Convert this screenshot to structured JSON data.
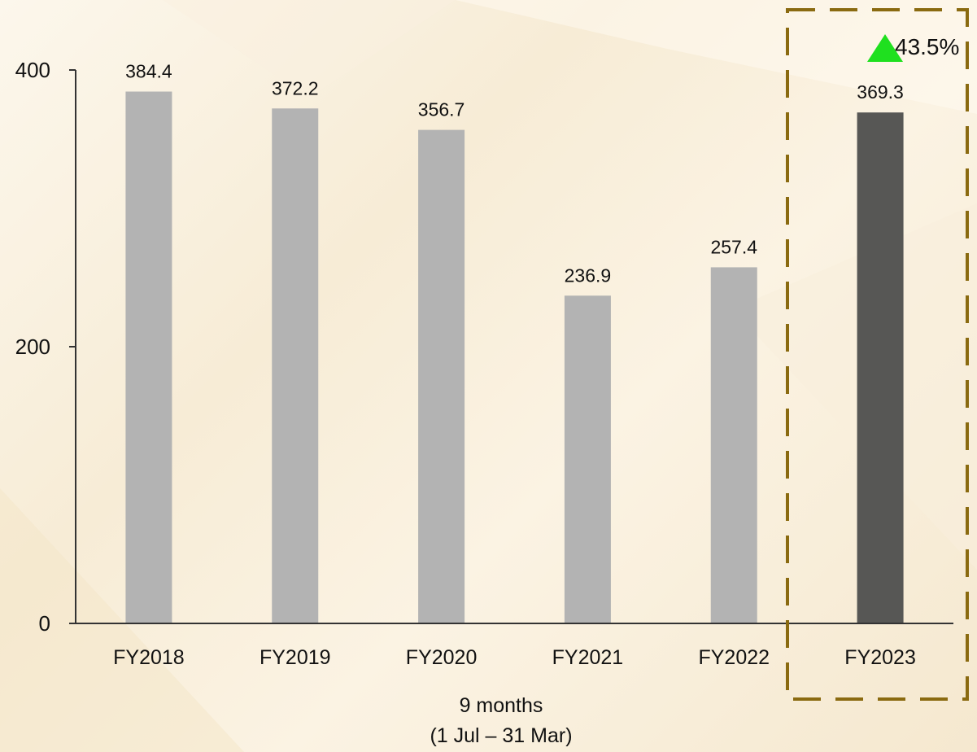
{
  "chart_data": {
    "type": "bar",
    "categories": [
      "FY2018",
      "FY2019",
      "FY2020",
      "FY2021",
      "FY2022",
      "FY2023"
    ],
    "values": [
      384.4,
      372.2,
      356.7,
      236.9,
      257.4,
      369.3
    ],
    "data_labels": [
      "384.4",
      "372.2",
      "356.7",
      "236.9",
      "257.4",
      "369.3"
    ],
    "highlight_category": "FY2023",
    "ylim": [
      0,
      400
    ],
    "yticks": [
      0,
      200,
      400
    ],
    "ytick_labels": [
      "0",
      "200",
      "400"
    ],
    "grid": false,
    "legend": "none",
    "note_line1": "9 months",
    "note_line2": "(1 Jul – 31 Mar)",
    "growth_label": "43.5%",
    "growth_direction": "up"
  },
  "colors": {
    "bar_default": "#b3b3b3",
    "bar_highlight": "#575755",
    "highlight_box": "#8a6a10",
    "growth_arrow": "#1fe01f",
    "axis": "#333333"
  },
  "icons": {
    "growth": "up-triangle-icon"
  }
}
